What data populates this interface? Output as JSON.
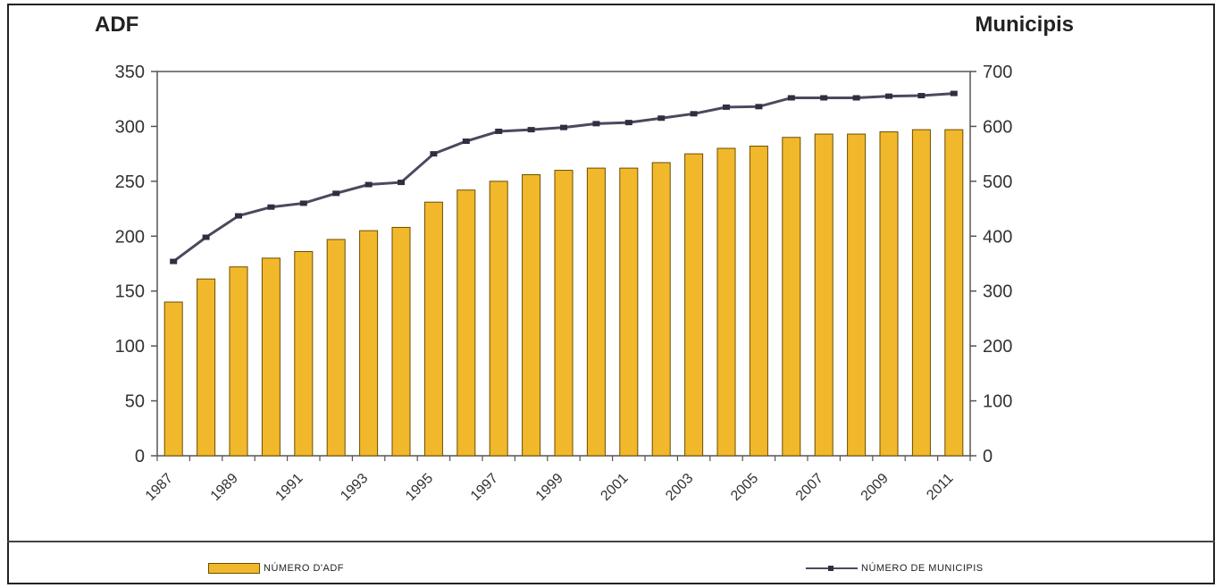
{
  "chart_data": {
    "type": "bar",
    "title": "",
    "ylabel": "ADF",
    "y2label": "Municipis",
    "ylim": [
      0,
      350
    ],
    "y2lim": [
      0,
      700
    ],
    "yticks": [
      0,
      50,
      100,
      150,
      200,
      250,
      300,
      350
    ],
    "y2ticks": [
      0,
      100,
      200,
      300,
      400,
      500,
      600,
      700
    ],
    "xtick_labels": [
      "1987",
      "1989",
      "1991",
      "1993",
      "1995",
      "1997",
      "1999",
      "2001",
      "2003",
      "2005",
      "2007",
      "2009",
      "2011"
    ],
    "grid": false,
    "legend_position": "bottom",
    "series": [
      {
        "name": "NÚMERO D'ADF",
        "type": "bar",
        "axis": "left",
        "color": "#f2b82c",
        "values": [
          140,
          161,
          172,
          180,
          186,
          197,
          205,
          208,
          231,
          242,
          250,
          256,
          260,
          262,
          262,
          267,
          275,
          280,
          282,
          290,
          293,
          293,
          295,
          297,
          297
        ]
      },
      {
        "name": "NÚMERO DE MUNICIPIS",
        "type": "line",
        "axis": "right",
        "color": "#4a4a5e",
        "values": [
          354,
          398,
          437,
          453,
          460,
          478,
          494,
          498,
          550,
          573,
          591,
          594,
          598,
          605,
          607,
          615,
          623,
          635,
          636,
          652,
          652,
          652,
          655,
          656,
          660
        ]
      }
    ]
  }
}
